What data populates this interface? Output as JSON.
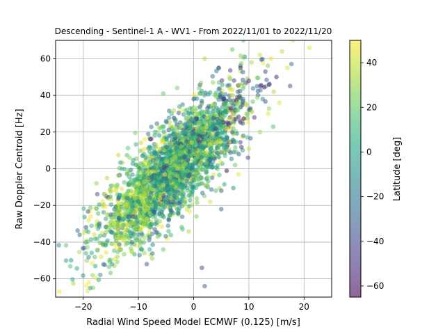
{
  "chart_data": {
    "type": "scatter",
    "title": "Descending - Sentinel-1 A - WV1 - From 2022/11/01 to 2022/11/20",
    "xlabel": "Radial Wind Speed Model ECMWF (0.125) [m/s]",
    "ylabel": "Raw Doppler Centroid [Hz]",
    "xlim": [
      -25,
      25
    ],
    "ylim": [
      -70,
      70
    ],
    "xticks": [
      -20,
      -10,
      0,
      10,
      20
    ],
    "yticks": [
      -60,
      -40,
      -20,
      0,
      20,
      40,
      60
    ],
    "grid": true,
    "point_alpha": 0.5,
    "colorbar": {
      "label": "Latitude [deg]",
      "colormap": "viridis",
      "range": [
        -65,
        50
      ],
      "ticks": [
        -60,
        -40,
        -20,
        0,
        20,
        40
      ]
    },
    "series": [
      {
        "description": "Approximately 3000 points; latitude encoded by color. Representative sample listed below as [x, y, latitude].",
        "points": [
          [
            -19,
            -28,
            45
          ],
          [
            -16.5,
            -18,
            45
          ],
          [
            -16,
            -14,
            48
          ],
          [
            -15,
            -25,
            -35
          ],
          [
            -14,
            -12,
            42
          ],
          [
            -13.5,
            -27,
            -40
          ],
          [
            -13,
            -11,
            44
          ],
          [
            -12.5,
            -22,
            20
          ],
          [
            -12,
            -31,
            30
          ],
          [
            -12,
            -16,
            -20
          ],
          [
            -11.5,
            -35,
            5
          ],
          [
            -11,
            -8,
            10
          ],
          [
            -11,
            -26,
            -45
          ],
          [
            -10.5,
            -39,
            25
          ],
          [
            -10,
            -2,
            15
          ],
          [
            -10,
            -18,
            -10
          ],
          [
            -9.5,
            -44,
            10
          ],
          [
            -9,
            8,
            0
          ],
          [
            -9,
            -30,
            35
          ],
          [
            -8.5,
            -52,
            -30
          ],
          [
            -8,
            12,
            -5
          ],
          [
            -8,
            -24,
            20
          ],
          [
            -7.5,
            -49,
            30
          ],
          [
            -7,
            20,
            10
          ],
          [
            -7,
            -6,
            -15
          ],
          [
            -6.5,
            -37,
            25
          ],
          [
            -6,
            22,
            25
          ],
          [
            -6,
            -14,
            40
          ],
          [
            -5.5,
            41,
            20
          ],
          [
            -5.5,
            -44,
            20
          ],
          [
            -5,
            26,
            -20
          ],
          [
            -5,
            5,
            15
          ],
          [
            -4.5,
            -28,
            -35
          ],
          [
            -4,
            30,
            10
          ],
          [
            -4,
            -10,
            5
          ],
          [
            -3.5,
            16,
            -10
          ],
          [
            -3,
            44,
            25
          ],
          [
            -3,
            -22,
            10
          ],
          [
            -2.5,
            8,
            30
          ],
          [
            -2,
            35,
            -15
          ],
          [
            -2,
            -33,
            15
          ],
          [
            -1.5,
            20,
            5
          ],
          [
            -1,
            -4,
            -25
          ],
          [
            -1,
            28,
            40
          ],
          [
            -0.5,
            -15,
            20
          ],
          [
            0,
            38,
            -30
          ],
          [
            0,
            10,
            10
          ],
          [
            0.5,
            -26,
            25
          ],
          [
            1,
            44,
            20
          ],
          [
            1,
            18,
            -40
          ],
          [
            1.5,
            -8,
            0
          ],
          [
            1.5,
            -54,
            -40
          ],
          [
            2,
            60,
            35
          ],
          [
            2,
            -64,
            -35
          ],
          [
            2.5,
            33,
            -45
          ],
          [
            3,
            -18,
            45
          ],
          [
            3,
            5,
            -20
          ],
          [
            3.5,
            47,
            30
          ],
          [
            4,
            22,
            -50
          ],
          [
            4,
            -12,
            15
          ],
          [
            4.5,
            55,
            -20
          ],
          [
            5,
            28,
            35
          ],
          [
            5,
            -22,
            -30
          ],
          [
            5.5,
            38,
            -55
          ],
          [
            6,
            12,
            -10
          ],
          [
            6.5,
            50,
            40
          ],
          [
            7,
            20,
            -40
          ],
          [
            7,
            65,
            20
          ],
          [
            7.5,
            2,
            20
          ],
          [
            8,
            42,
            -35
          ],
          [
            8.5,
            55,
            -60
          ],
          [
            9,
            18,
            -20
          ],
          [
            9,
            70,
            20
          ],
          [
            9.5,
            35,
            45
          ],
          [
            10,
            48,
            -50
          ],
          [
            10,
            11,
            40
          ],
          [
            10.5,
            58,
            35
          ],
          [
            11,
            28,
            -45
          ],
          [
            11.5,
            45,
            -25
          ],
          [
            12,
            62,
            40
          ],
          [
            12,
            20,
            30
          ],
          [
            12.5,
            38,
            -15
          ],
          [
            13,
            53,
            -40
          ],
          [
            13.5,
            30,
            45
          ],
          [
            14,
            60,
            45
          ],
          [
            14.5,
            42,
            35
          ],
          [
            15,
            50,
            -55
          ],
          [
            15.5,
            36,
            45
          ],
          [
            16,
            64,
            40
          ],
          [
            17,
            55,
            45
          ],
          [
            18,
            70,
            45
          ],
          [
            21,
            66,
            45
          ]
        ]
      }
    ]
  }
}
